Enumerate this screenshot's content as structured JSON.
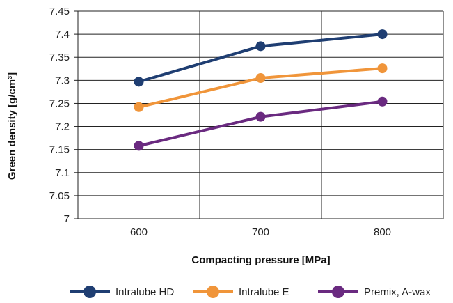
{
  "chart_data": {
    "type": "line",
    "xlabel": "Compacting pressure [MPa]",
    "ylabel": "Green density [g/cm³]",
    "categories": [
      600,
      700,
      800
    ],
    "ylim": [
      7,
      7.45
    ],
    "yticks": [
      "7",
      "7.05",
      "7.1",
      "7.15",
      "7.2",
      "7.25",
      "7.3",
      "7.35",
      "7.4",
      "7.45"
    ],
    "grid": true,
    "legend_position": "bottom",
    "series": [
      {
        "name": "Intralube HD",
        "color": "#1f3e72",
        "values": [
          7.297,
          7.374,
          7.4
        ]
      },
      {
        "name": "Intralube E",
        "color": "#f0953a",
        "values": [
          7.242,
          7.305,
          7.326
        ]
      },
      {
        "name": "Premix, A-wax",
        "color": "#6a2a80",
        "values": [
          7.158,
          7.221,
          7.254
        ]
      }
    ]
  }
}
